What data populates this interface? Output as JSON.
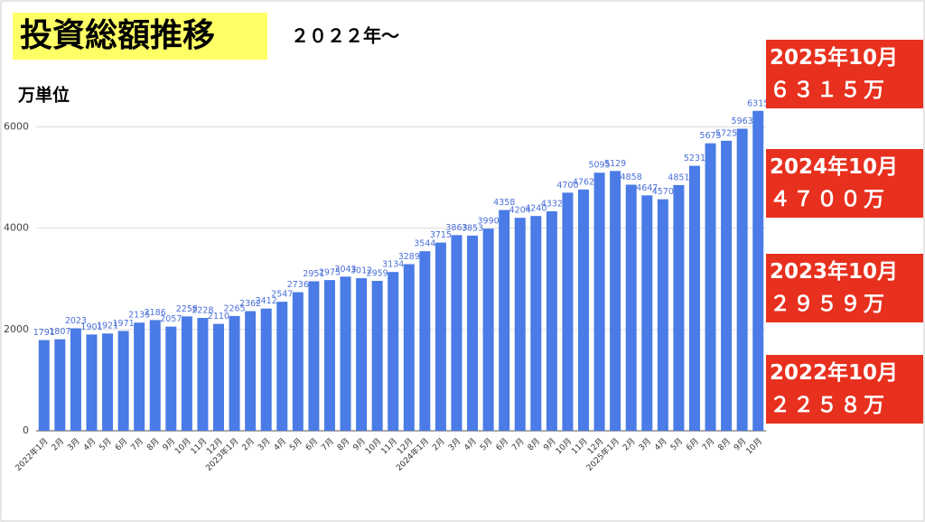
{
  "chart_data": {
    "type": "bar",
    "title": "投資総額推移",
    "subtitle": "２０２２年〜",
    "unit_label": "万単位",
    "categories": [
      "2022年1月",
      "2月",
      "3月",
      "4月",
      "5月",
      "6月",
      "7月",
      "8月",
      "9月",
      "10月",
      "11月",
      "12月",
      "2023年1月",
      "2月",
      "3月",
      "4月",
      "5月",
      "6月",
      "7月",
      "8月",
      "9月",
      "10月",
      "11月",
      "12月",
      "2024年1月",
      "2月",
      "3月",
      "4月",
      "5月",
      "6月",
      "7月",
      "8月",
      "9月",
      "10月",
      "11月",
      "12月",
      "2025年1月",
      "2月",
      "3月",
      "4月",
      "5月",
      "6月",
      "7月",
      "8月",
      "9月",
      "10月"
    ],
    "values": [
      1791,
      1807,
      2023,
      1901,
      1921,
      1971,
      2135,
      2186,
      2057,
      2258,
      2228,
      2110,
      2265,
      2362,
      2412,
      2547,
      2736,
      2951,
      2975,
      3043,
      3012,
      2959,
      3134,
      3289,
      3544,
      3715,
      3863,
      3853,
      3990,
      4358,
      4204,
      4240,
      4332,
      4700,
      4762,
      5095,
      5129,
      4858,
      4647,
      4570,
      4851,
      5231,
      5675,
      5725,
      5963,
      6315
    ],
    "color": "#4a7be6",
    "ylim": [
      0,
      6400
    ],
    "yticks": [
      0,
      2000,
      4000,
      6000
    ],
    "grid": true,
    "annotations": [
      {
        "label": "2025年10月",
        "amount": "６３１５万"
      },
      {
        "label": "2024年10月",
        "amount": "４７００万"
      },
      {
        "label": "2023年10月",
        "amount": "２９５９万"
      },
      {
        "label": "2022年10月",
        "amount": "２２５８万"
      }
    ]
  }
}
